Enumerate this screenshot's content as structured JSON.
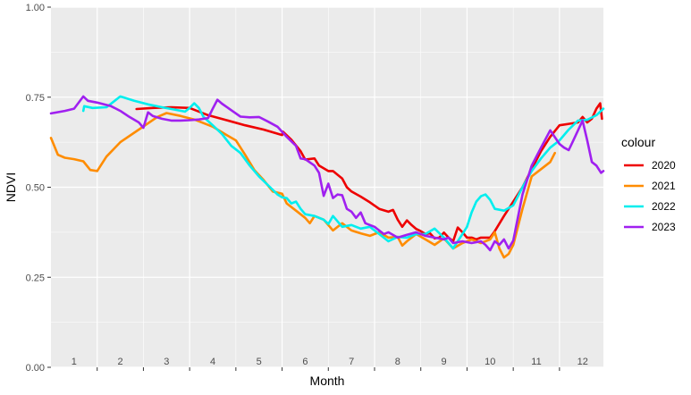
{
  "chart_data": {
    "type": "line",
    "title": "",
    "xlabel": "Month",
    "ylabel": "NDVI",
    "xlim": [
      0.5,
      12.45
    ],
    "ylim": [
      0.0,
      1.0
    ],
    "x_ticks": [
      1,
      2,
      3,
      4,
      5,
      6,
      7,
      8,
      9,
      10,
      11,
      12
    ],
    "x_tick_labels": [
      "1",
      "2",
      "3",
      "4",
      "5",
      "6",
      "7",
      "8",
      "9",
      "10",
      "11",
      "12"
    ],
    "y_ticks": [
      0.0,
      0.25,
      0.5,
      0.75,
      1.0
    ],
    "y_tick_labels": [
      "0.00",
      "0.25",
      "0.50",
      "0.75",
      "1.00"
    ],
    "grid": true,
    "background": "#ebebeb",
    "legend": {
      "title": "colour",
      "position": "right"
    },
    "series": [
      {
        "name": "2020",
        "color": "#ee0000",
        "points": [
          [
            2.35,
            0.717
          ],
          [
            2.7,
            0.72
          ],
          [
            3.1,
            0.722
          ],
          [
            3.5,
            0.72
          ],
          [
            3.9,
            0.7
          ],
          [
            4.3,
            0.686
          ],
          [
            4.7,
            0.672
          ],
          [
            5.1,
            0.66
          ],
          [
            5.5,
            0.645
          ],
          [
            5.52,
            0.654
          ],
          [
            5.7,
            0.632
          ],
          [
            5.9,
            0.6
          ],
          [
            6.0,
            0.577
          ],
          [
            6.2,
            0.58
          ],
          [
            6.3,
            0.56
          ],
          [
            6.5,
            0.545
          ],
          [
            6.6,
            0.545
          ],
          [
            6.8,
            0.524
          ],
          [
            6.9,
            0.5
          ],
          [
            7.0,
            0.488
          ],
          [
            7.2,
            0.474
          ],
          [
            7.4,
            0.458
          ],
          [
            7.6,
            0.44
          ],
          [
            7.8,
            0.432
          ],
          [
            7.9,
            0.437
          ],
          [
            8.0,
            0.41
          ],
          [
            8.1,
            0.39
          ],
          [
            8.2,
            0.408
          ],
          [
            8.3,
            0.395
          ],
          [
            8.4,
            0.384
          ],
          [
            8.5,
            0.378
          ],
          [
            8.6,
            0.37
          ],
          [
            8.7,
            0.372
          ],
          [
            8.8,
            0.358
          ],
          [
            8.9,
            0.36
          ],
          [
            9.0,
            0.374
          ],
          [
            9.1,
            0.36
          ],
          [
            9.2,
            0.35
          ],
          [
            9.3,
            0.388
          ],
          [
            9.4,
            0.375
          ],
          [
            9.5,
            0.36
          ],
          [
            9.6,
            0.36
          ],
          [
            9.7,
            0.355
          ],
          [
            9.8,
            0.36
          ],
          [
            9.9,
            0.36
          ],
          [
            10.0,
            0.36
          ],
          [
            10.1,
            0.378
          ],
          [
            10.3,
            0.42
          ],
          [
            10.5,
            0.46
          ],
          [
            10.7,
            0.5
          ],
          [
            10.9,
            0.55
          ],
          [
            11.1,
            0.6
          ],
          [
            11.3,
            0.64
          ],
          [
            11.5,
            0.672
          ],
          [
            11.7,
            0.676
          ],
          [
            11.9,
            0.68
          ],
          [
            12.0,
            0.695
          ],
          [
            12.1,
            0.68
          ],
          [
            12.2,
            0.69
          ],
          [
            12.3,
            0.718
          ],
          [
            12.38,
            0.733
          ],
          [
            12.42,
            0.69
          ]
        ]
      },
      {
        "name": "2021",
        "color": "#ff8c00",
        "points": [
          [
            0.5,
            0.637
          ],
          [
            0.65,
            0.59
          ],
          [
            0.8,
            0.582
          ],
          [
            1.0,
            0.578
          ],
          [
            1.2,
            0.572
          ],
          [
            1.35,
            0.548
          ],
          [
            1.5,
            0.545
          ],
          [
            1.7,
            0.585
          ],
          [
            2.0,
            0.625
          ],
          [
            2.4,
            0.66
          ],
          [
            2.8,
            0.695
          ],
          [
            3.0,
            0.706
          ],
          [
            3.3,
            0.698
          ],
          [
            3.6,
            0.688
          ],
          [
            4.0,
            0.668
          ],
          [
            4.3,
            0.645
          ],
          [
            4.5,
            0.63
          ],
          [
            4.7,
            0.59
          ],
          [
            4.9,
            0.548
          ],
          [
            5.1,
            0.52
          ],
          [
            5.3,
            0.488
          ],
          [
            5.5,
            0.482
          ],
          [
            5.6,
            0.455
          ],
          [
            5.8,
            0.435
          ],
          [
            6.0,
            0.415
          ],
          [
            6.1,
            0.4
          ],
          [
            6.2,
            0.42
          ],
          [
            6.4,
            0.41
          ],
          [
            6.6,
            0.38
          ],
          [
            6.8,
            0.4
          ],
          [
            7.0,
            0.38
          ],
          [
            7.2,
            0.372
          ],
          [
            7.4,
            0.365
          ],
          [
            7.6,
            0.375
          ],
          [
            7.8,
            0.36
          ],
          [
            8.0,
            0.362
          ],
          [
            8.1,
            0.338
          ],
          [
            8.2,
            0.35
          ],
          [
            8.4,
            0.37
          ],
          [
            8.6,
            0.355
          ],
          [
            8.8,
            0.34
          ],
          [
            9.0,
            0.358
          ],
          [
            9.2,
            0.33
          ],
          [
            9.4,
            0.345
          ],
          [
            9.6,
            0.355
          ],
          [
            9.8,
            0.345
          ],
          [
            10.0,
            0.355
          ],
          [
            10.1,
            0.375
          ],
          [
            10.2,
            0.33
          ],
          [
            10.3,
            0.305
          ],
          [
            10.4,
            0.315
          ],
          [
            10.5,
            0.34
          ],
          [
            10.7,
            0.44
          ],
          [
            10.9,
            0.53
          ],
          [
            11.1,
            0.55
          ],
          [
            11.3,
            0.57
          ],
          [
            11.4,
            0.595
          ]
        ]
      },
      {
        "name": "2022",
        "color": "#00eeee",
        "points": [
          [
            1.2,
            0.712
          ],
          [
            1.22,
            0.725
          ],
          [
            1.4,
            0.72
          ],
          [
            1.7,
            0.722
          ],
          [
            2.0,
            0.752
          ],
          [
            2.3,
            0.74
          ],
          [
            2.6,
            0.73
          ],
          [
            2.9,
            0.722
          ],
          [
            3.2,
            0.715
          ],
          [
            3.4,
            0.71
          ],
          [
            3.5,
            0.72
          ],
          [
            3.6,
            0.733
          ],
          [
            3.7,
            0.72
          ],
          [
            3.8,
            0.695
          ],
          [
            4.0,
            0.672
          ],
          [
            4.2,
            0.648
          ],
          [
            4.4,
            0.615
          ],
          [
            4.6,
            0.595
          ],
          [
            4.8,
            0.56
          ],
          [
            5.0,
            0.53
          ],
          [
            5.2,
            0.505
          ],
          [
            5.4,
            0.48
          ],
          [
            5.5,
            0.472
          ],
          [
            5.6,
            0.47
          ],
          [
            5.7,
            0.455
          ],
          [
            5.8,
            0.46
          ],
          [
            5.9,
            0.44
          ],
          [
            6.0,
            0.425
          ],
          [
            6.2,
            0.42
          ],
          [
            6.4,
            0.41
          ],
          [
            6.5,
            0.398
          ],
          [
            6.6,
            0.42
          ],
          [
            6.8,
            0.39
          ],
          [
            7.0,
            0.395
          ],
          [
            7.2,
            0.385
          ],
          [
            7.4,
            0.39
          ],
          [
            7.6,
            0.37
          ],
          [
            7.8,
            0.35
          ],
          [
            8.0,
            0.362
          ],
          [
            8.2,
            0.36
          ],
          [
            8.4,
            0.37
          ],
          [
            8.6,
            0.37
          ],
          [
            8.8,
            0.385
          ],
          [
            9.0,
            0.36
          ],
          [
            9.2,
            0.33
          ],
          [
            9.4,
            0.37
          ],
          [
            9.5,
            0.39
          ],
          [
            9.6,
            0.43
          ],
          [
            9.7,
            0.46
          ],
          [
            9.8,
            0.475
          ],
          [
            9.9,
            0.48
          ],
          [
            10.0,
            0.465
          ],
          [
            10.1,
            0.44
          ],
          [
            10.3,
            0.435
          ],
          [
            10.5,
            0.45
          ],
          [
            10.7,
            0.5
          ],
          [
            10.9,
            0.545
          ],
          [
            11.1,
            0.58
          ],
          [
            11.3,
            0.61
          ],
          [
            11.5,
            0.63
          ],
          [
            11.7,
            0.66
          ],
          [
            11.9,
            0.685
          ],
          [
            12.1,
            0.687
          ],
          [
            12.3,
            0.7
          ],
          [
            12.45,
            0.718
          ]
        ]
      },
      {
        "name": "2023",
        "color": "#a020f0",
        "points": [
          [
            0.5,
            0.705
          ],
          [
            0.8,
            0.712
          ],
          [
            1.0,
            0.718
          ],
          [
            1.2,
            0.752
          ],
          [
            1.3,
            0.74
          ],
          [
            1.5,
            0.735
          ],
          [
            1.8,
            0.725
          ],
          [
            2.0,
            0.712
          ],
          [
            2.2,
            0.695
          ],
          [
            2.4,
            0.68
          ],
          [
            2.5,
            0.665
          ],
          [
            2.6,
            0.708
          ],
          [
            2.7,
            0.698
          ],
          [
            2.9,
            0.69
          ],
          [
            3.1,
            0.685
          ],
          [
            3.3,
            0.685
          ],
          [
            3.5,
            0.686
          ],
          [
            3.7,
            0.688
          ],
          [
            3.9,
            0.692
          ],
          [
            4.0,
            0.718
          ],
          [
            4.1,
            0.743
          ],
          [
            4.2,
            0.732
          ],
          [
            4.4,
            0.714
          ],
          [
            4.6,
            0.696
          ],
          [
            4.8,
            0.694
          ],
          [
            5.0,
            0.695
          ],
          [
            5.2,
            0.682
          ],
          [
            5.4,
            0.668
          ],
          [
            5.6,
            0.64
          ],
          [
            5.8,
            0.615
          ],
          [
            5.9,
            0.58
          ],
          [
            6.0,
            0.578
          ],
          [
            6.2,
            0.56
          ],
          [
            6.3,
            0.54
          ],
          [
            6.4,
            0.476
          ],
          [
            6.5,
            0.51
          ],
          [
            6.6,
            0.47
          ],
          [
            6.7,
            0.48
          ],
          [
            6.8,
            0.478
          ],
          [
            6.9,
            0.44
          ],
          [
            7.0,
            0.432
          ],
          [
            7.1,
            0.415
          ],
          [
            7.2,
            0.43
          ],
          [
            7.3,
            0.4
          ],
          [
            7.4,
            0.395
          ],
          [
            7.5,
            0.39
          ],
          [
            7.6,
            0.38
          ],
          [
            7.7,
            0.37
          ],
          [
            7.8,
            0.375
          ],
          [
            8.0,
            0.36
          ],
          [
            8.2,
            0.368
          ],
          [
            8.4,
            0.375
          ],
          [
            8.6,
            0.365
          ],
          [
            8.8,
            0.36
          ],
          [
            9.0,
            0.355
          ],
          [
            9.1,
            0.36
          ],
          [
            9.2,
            0.345
          ],
          [
            9.4,
            0.35
          ],
          [
            9.6,
            0.345
          ],
          [
            9.8,
            0.35
          ],
          [
            9.9,
            0.34
          ],
          [
            10.0,
            0.325
          ],
          [
            10.1,
            0.35
          ],
          [
            10.2,
            0.34
          ],
          [
            10.3,
            0.355
          ],
          [
            10.4,
            0.33
          ],
          [
            10.5,
            0.352
          ],
          [
            10.7,
            0.48
          ],
          [
            10.9,
            0.56
          ],
          [
            11.1,
            0.61
          ],
          [
            11.3,
            0.658
          ],
          [
            11.5,
            0.62
          ],
          [
            11.6,
            0.61
          ],
          [
            11.7,
            0.603
          ],
          [
            11.8,
            0.63
          ],
          [
            12.0,
            0.685
          ],
          [
            12.1,
            0.63
          ],
          [
            12.2,
            0.57
          ],
          [
            12.3,
            0.56
          ],
          [
            12.4,
            0.54
          ],
          [
            12.45,
            0.545
          ]
        ]
      }
    ]
  }
}
